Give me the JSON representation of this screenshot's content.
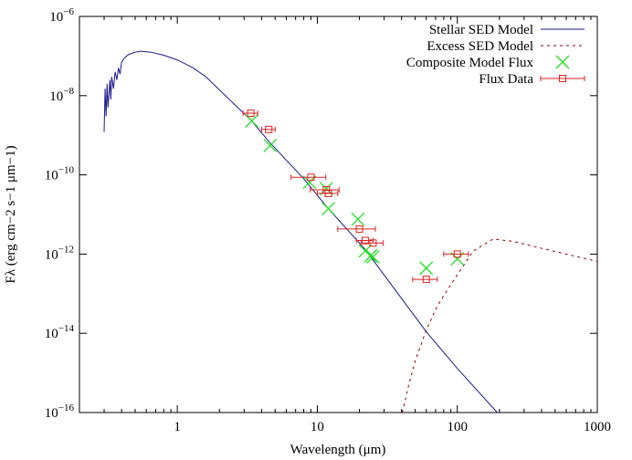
{
  "chart_data": {
    "type": "line",
    "xlabel": "Wavelength (μm)",
    "ylabel": "Fλ (erg cm−2 s−1 μm−1)",
    "xscale": "log",
    "yscale": "log",
    "xlim": [
      0.2,
      1000
    ],
    "ylim": [
      1e-16,
      1e-06
    ],
    "xticks": [
      1,
      10,
      100,
      1000
    ],
    "yticks": [
      {
        "value": 1e-16,
        "label": "10−16"
      },
      {
        "value": 1e-14,
        "label": "10−14"
      },
      {
        "value": 1e-12,
        "label": "10−12"
      },
      {
        "value": 1e-10,
        "label": "10−10"
      },
      {
        "value": 1e-08,
        "label": "10−8"
      },
      {
        "value": 1e-06,
        "label": "10−6"
      }
    ],
    "legend": "upper right",
    "series": [
      {
        "name": "Stellar SED Model",
        "style": "line",
        "color": "#1a1a8c",
        "x": [
          0.3,
          0.305,
          0.31,
          0.315,
          0.32,
          0.33,
          0.335,
          0.34,
          0.35,
          0.36,
          0.37,
          0.38,
          0.39,
          0.4,
          0.42,
          0.45,
          0.5,
          0.55,
          0.65,
          0.8,
          1.0,
          1.3,
          1.6,
          2.0,
          2.5,
          3.4,
          4.5,
          8,
          12,
          22,
          60,
          100,
          220
        ],
        "values": [
          1.2e-09,
          1.5e-08,
          3e-09,
          2e-08,
          5e-09,
          2.5e-08,
          8e-09,
          3e-08,
          1.5e-08,
          4e-08,
          2.5e-08,
          5e-08,
          3.5e-08,
          7e-08,
          9e-08,
          1.1e-07,
          1.25e-07,
          1.32e-07,
          1.25e-07,
          1.05e-07,
          8e-08,
          5e-08,
          3e-08,
          1.4e-08,
          6.5e-09,
          2.3e-09,
          7e-10,
          8e-11,
          1.4e-11,
          1.3e-12,
          1.1e-14,
          1.3e-15,
          6e-17
        ]
      },
      {
        "name": "Excess SED Model",
        "style": "dashed",
        "color": "#8b0000",
        "x": [
          40.5,
          45,
          50,
          60,
          70,
          80,
          100,
          130,
          180,
          250,
          400,
          600,
          1000
        ],
        "values": [
          1e-16,
          5e-16,
          2e-15,
          1.2e-14,
          4e-14,
          9e-14,
          3e-13,
          1.2e-12,
          2.4e-12,
          2.1e-12,
          1.4e-12,
          1e-12,
          6.5e-13
        ]
      },
      {
        "name": "Composite Model Flux",
        "style": "cross",
        "color": "#22dd22",
        "x": [
          3.4,
          4.6,
          8.8,
          11.6,
          12,
          19.5,
          22,
          24,
          25,
          60,
          100
        ],
        "values": [
          2.3e-09,
          5.5e-10,
          6.5e-11,
          4.5e-11,
          1.4e-11,
          7.6e-12,
          1.2e-12,
          9e-13,
          8.5e-13,
          4.4e-13,
          7.6e-13
        ]
      },
      {
        "name": "Flux Data",
        "style": "errorbar",
        "color": "#dd2222",
        "x": [
          3.35,
          4.5,
          9,
          11.6,
          12,
          20,
          22,
          25,
          60,
          100
        ],
        "xerr": [
          0.4,
          0.5,
          2.5,
          2.7,
          2.0,
          6,
          3,
          4.5,
          12,
          20
        ],
        "values": [
          3.6e-09,
          1.4e-09,
          8.7e-11,
          4.2e-11,
          3.4e-11,
          4.3e-12,
          2.2e-12,
          1.9e-12,
          2.3e-13,
          1e-12
        ]
      }
    ]
  }
}
